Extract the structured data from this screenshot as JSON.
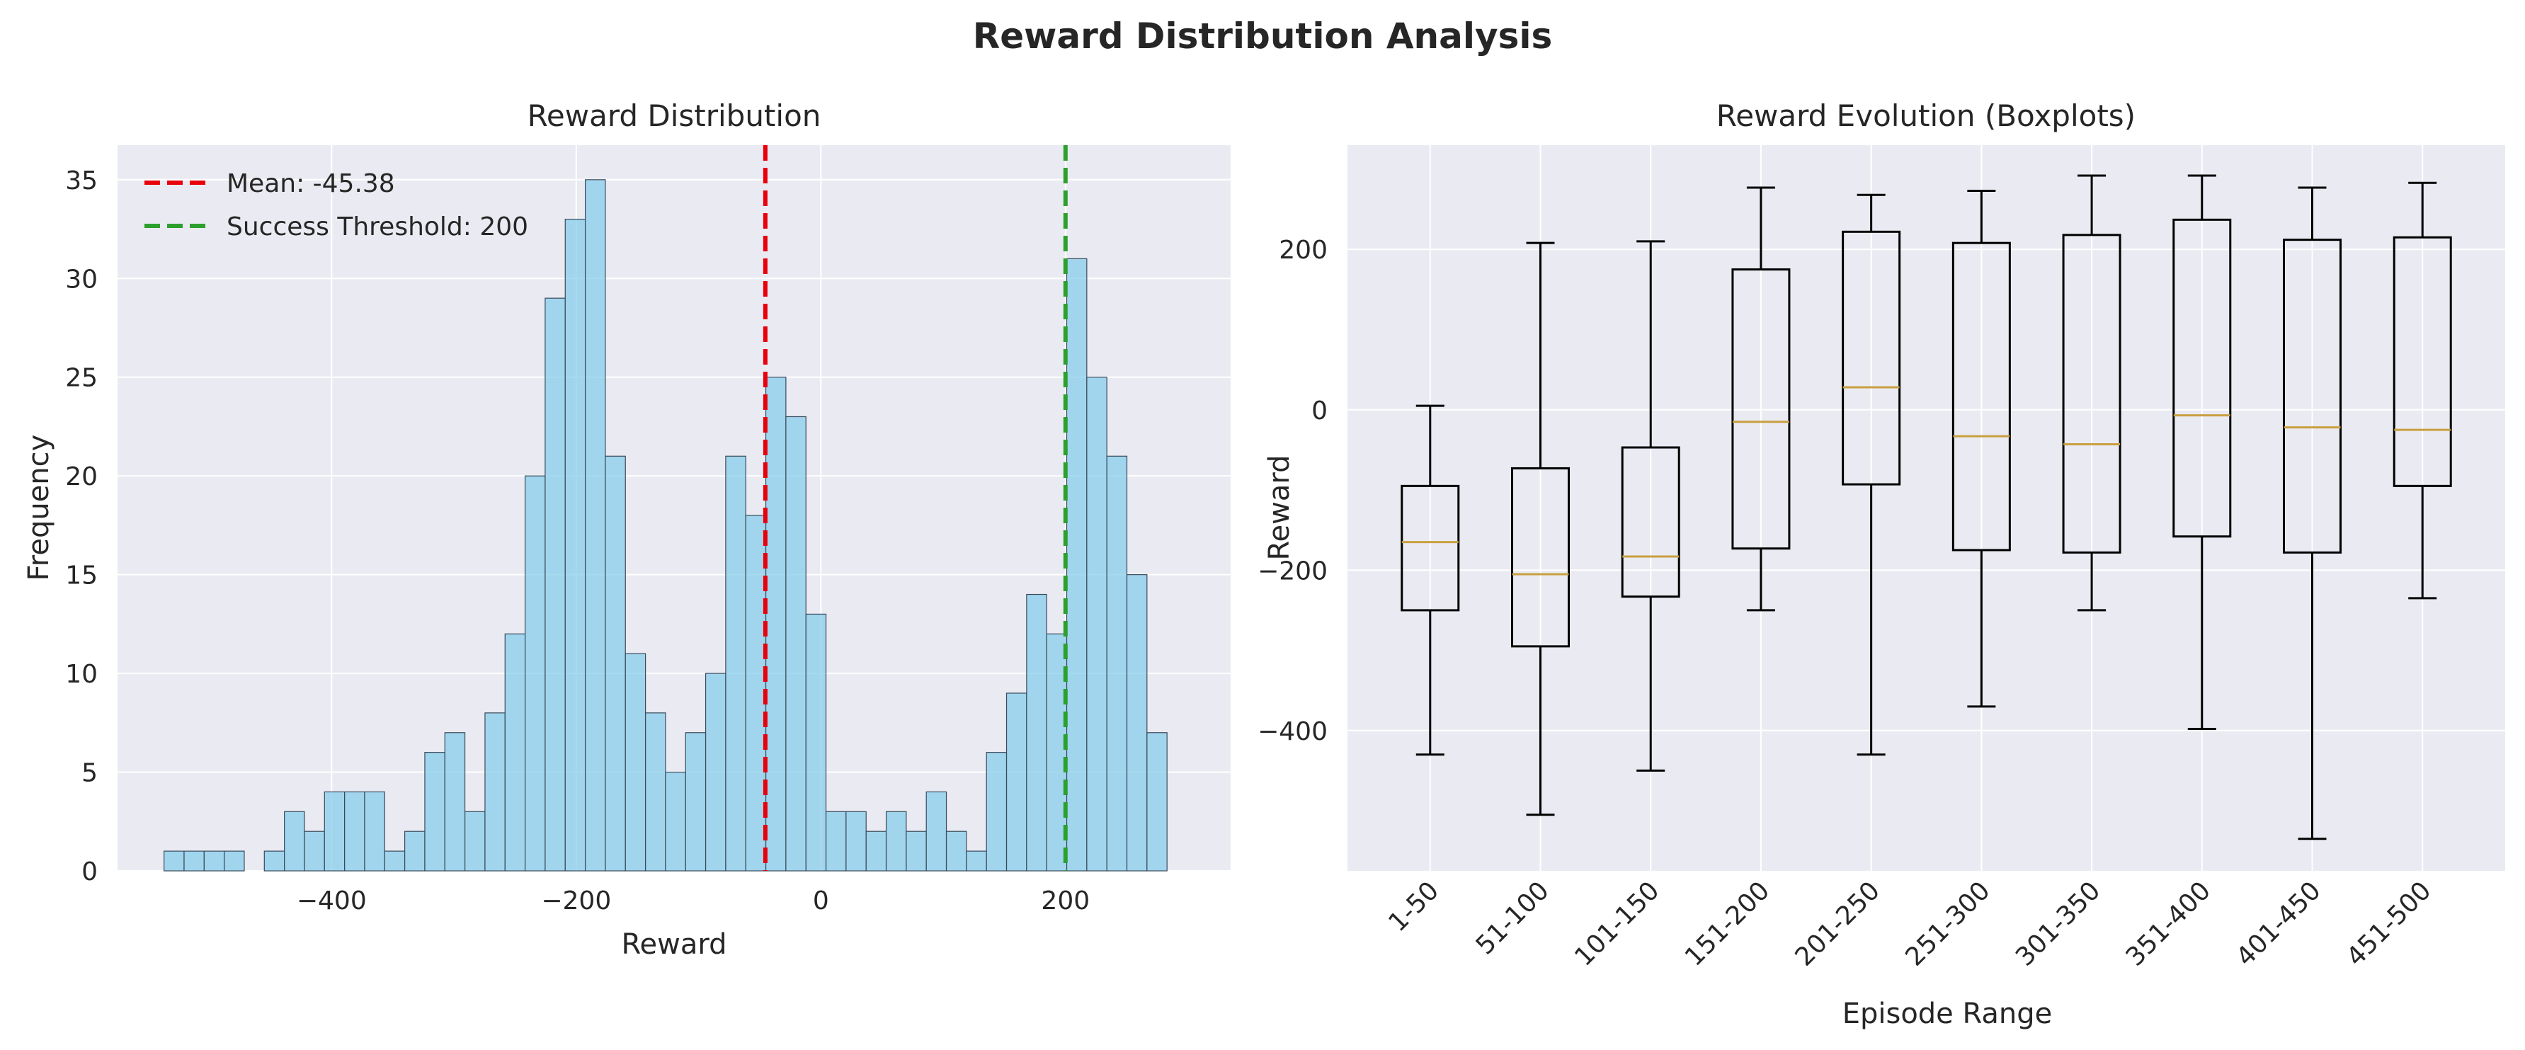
{
  "figure": {
    "title": "Reward Distribution Analysis"
  },
  "chart_data": [
    {
      "type": "bar",
      "subtype": "histogram",
      "title": "Reward Distribution",
      "xlabel": "Reward",
      "ylabel": "Frequency",
      "xlim": [
        -575,
        335
      ],
      "ylim": [
        0,
        36.75
      ],
      "bin_start": -537,
      "bin_width": 16.4,
      "counts": [
        1,
        1,
        1,
        1,
        0,
        1,
        3,
        2,
        4,
        4,
        4,
        1,
        2,
        6,
        7,
        3,
        8,
        12,
        20,
        29,
        33,
        35,
        21,
        11,
        8,
        5,
        7,
        10,
        21,
        18,
        25,
        23,
        13,
        3,
        3,
        2,
        3,
        2,
        4,
        2,
        1,
        6,
        9,
        14,
        12,
        31,
        25,
        21,
        15,
        7
      ],
      "bar_color": "#87ceeb",
      "grid": true,
      "legend_position": "top-left",
      "reference_lines": [
        {
          "name": "Mean: -45.38",
          "x": -45.38,
          "color": "#e8000b",
          "style": "dashed"
        },
        {
          "name": "Success Threshold: 200",
          "x": 200,
          "color": "#2ca02c",
          "style": "dashed"
        }
      ],
      "x_ticks": [
        {
          "value": -400,
          "label": "−400"
        },
        {
          "value": -200,
          "label": "−200"
        },
        {
          "value": 0,
          "label": "0"
        },
        {
          "value": 200,
          "label": "200"
        }
      ],
      "y_ticks": [
        {
          "value": 0,
          "label": "0"
        },
        {
          "value": 5,
          "label": "5"
        },
        {
          "value": 10,
          "label": "10"
        },
        {
          "value": 15,
          "label": "15"
        },
        {
          "value": 20,
          "label": "20"
        },
        {
          "value": 25,
          "label": "25"
        },
        {
          "value": 30,
          "label": "30"
        },
        {
          "value": 35,
          "label": "35"
        }
      ]
    },
    {
      "type": "boxplot",
      "title": "Reward Evolution (Boxplots)",
      "xlabel": "Episode Range",
      "ylabel": "Reward",
      "ylim": [
        -575,
        330
      ],
      "grid": true,
      "median_color": "#c8a040",
      "categories": [
        "1-50",
        "51-100",
        "101-150",
        "151-200",
        "201-250",
        "251-300",
        "301-350",
        "351-400",
        "401-450",
        "451-500"
      ],
      "boxes": [
        {
          "whisker_low": -430,
          "q1": -250,
          "median": -165,
          "q3": -95,
          "whisker_high": 5
        },
        {
          "whisker_low": -505,
          "q1": -295,
          "median": -205,
          "q3": -73,
          "whisker_high": 208
        },
        {
          "whisker_low": -450,
          "q1": -233,
          "median": -183,
          "q3": -47,
          "whisker_high": 210
        },
        {
          "whisker_low": -250,
          "q1": -173,
          "median": -15,
          "q3": 175,
          "whisker_high": 277
        },
        {
          "whisker_low": -430,
          "q1": -93,
          "median": 28,
          "q3": 222,
          "whisker_high": 268
        },
        {
          "whisker_low": -370,
          "q1": -175,
          "median": -33,
          "q3": 208,
          "whisker_high": 273
        },
        {
          "whisker_low": -250,
          "q1": -178,
          "median": -43,
          "q3": 218,
          "whisker_high": 292
        },
        {
          "whisker_low": -398,
          "q1": -158,
          "median": -7,
          "q3": 237,
          "whisker_high": 292
        },
        {
          "whisker_low": -535,
          "q1": -178,
          "median": -22,
          "q3": 212,
          "whisker_high": 277
        },
        {
          "whisker_low": -235,
          "q1": -95,
          "median": -25,
          "q3": 215,
          "whisker_high": 283
        }
      ],
      "y_ticks": [
        {
          "value": -400,
          "label": "−400"
        },
        {
          "value": -200,
          "label": "−200"
        },
        {
          "value": 0,
          "label": "0"
        },
        {
          "value": 200,
          "label": "200"
        }
      ]
    }
  ]
}
